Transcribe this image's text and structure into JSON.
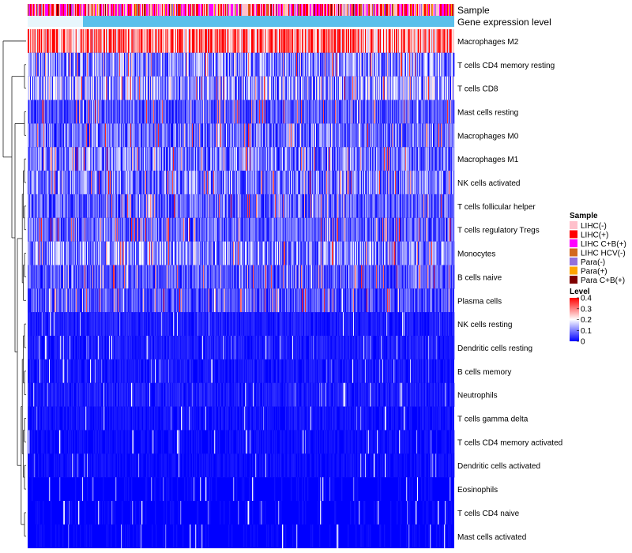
{
  "chart_data": {
    "type": "heatmap",
    "annotation_rows": [
      "Sample",
      "Gene expression level"
    ],
    "rows": [
      "Macrophages M2",
      "T cells CD4 memory resting",
      "T cells CD8",
      "Mast cells resting",
      "Macrophages M0",
      "Macrophages M1",
      "NK cells activated",
      "T cells follicular helper",
      "T cells regulatory  Tregs",
      "Monocytes",
      "B cells naive",
      "Plasma cells",
      "NK cells resting",
      "Dendritic cells resting",
      "B cells memory",
      "Neutrophils",
      "T cells gamma delta",
      "T cells CD4 memory activated",
      "Dendritic cells activated",
      "Eosinophils",
      "T cells CD4 naive",
      "Mast cells activated"
    ],
    "row_mean_level": [
      0.3,
      0.1,
      0.12,
      0.06,
      0.08,
      0.09,
      0.09,
      0.07,
      0.07,
      0.1,
      0.06,
      0.06,
      0.03,
      0.03,
      0.025,
      0.03,
      0.02,
      0.015,
      0.015,
      0.01,
      0.01,
      0.01
    ],
    "row_clusters": [
      [
        0
      ],
      [
        1,
        2
      ],
      [
        3,
        4
      ],
      [
        5,
        6,
        7,
        8,
        9,
        10,
        11
      ],
      [
        12,
        13,
        14,
        15,
        16,
        17,
        18,
        19,
        20,
        21
      ]
    ],
    "n_columns": 540,
    "sample_legend": {
      "title": "Sample",
      "items": [
        {
          "label": "LIHC(-)",
          "color": "#FFC0CB"
        },
        {
          "label": "LIHC(+)",
          "color": "#FF0000"
        },
        {
          "label": "LIHC C+B(+)",
          "color": "#FF00FF"
        },
        {
          "label": "LIHC HCV(-)",
          "color": "#D2691E"
        },
        {
          "label": "Para(-)",
          "color": "#9370DB"
        },
        {
          "label": "Para(+)",
          "color": "#FFA500"
        },
        {
          "label": "Para C+B(+)",
          "color": "#800000"
        }
      ]
    },
    "sample_weights": [
      0.34,
      0.24,
      0.26,
      0.05,
      0.04,
      0.04,
      0.03
    ],
    "gene_expression_color": "#5BC0EB",
    "level_legend": {
      "title": "Level",
      "ticks": [
        "0.4",
        "0.3",
        "0.2",
        "0.1",
        "0"
      ],
      "tick_values": [
        0.4,
        0.3,
        0.2,
        0.1,
        0
      ],
      "range": [
        0,
        0.4
      ]
    },
    "color_scale": [
      "#0000FF",
      "#FFFFFF",
      "#FF0000"
    ]
  }
}
